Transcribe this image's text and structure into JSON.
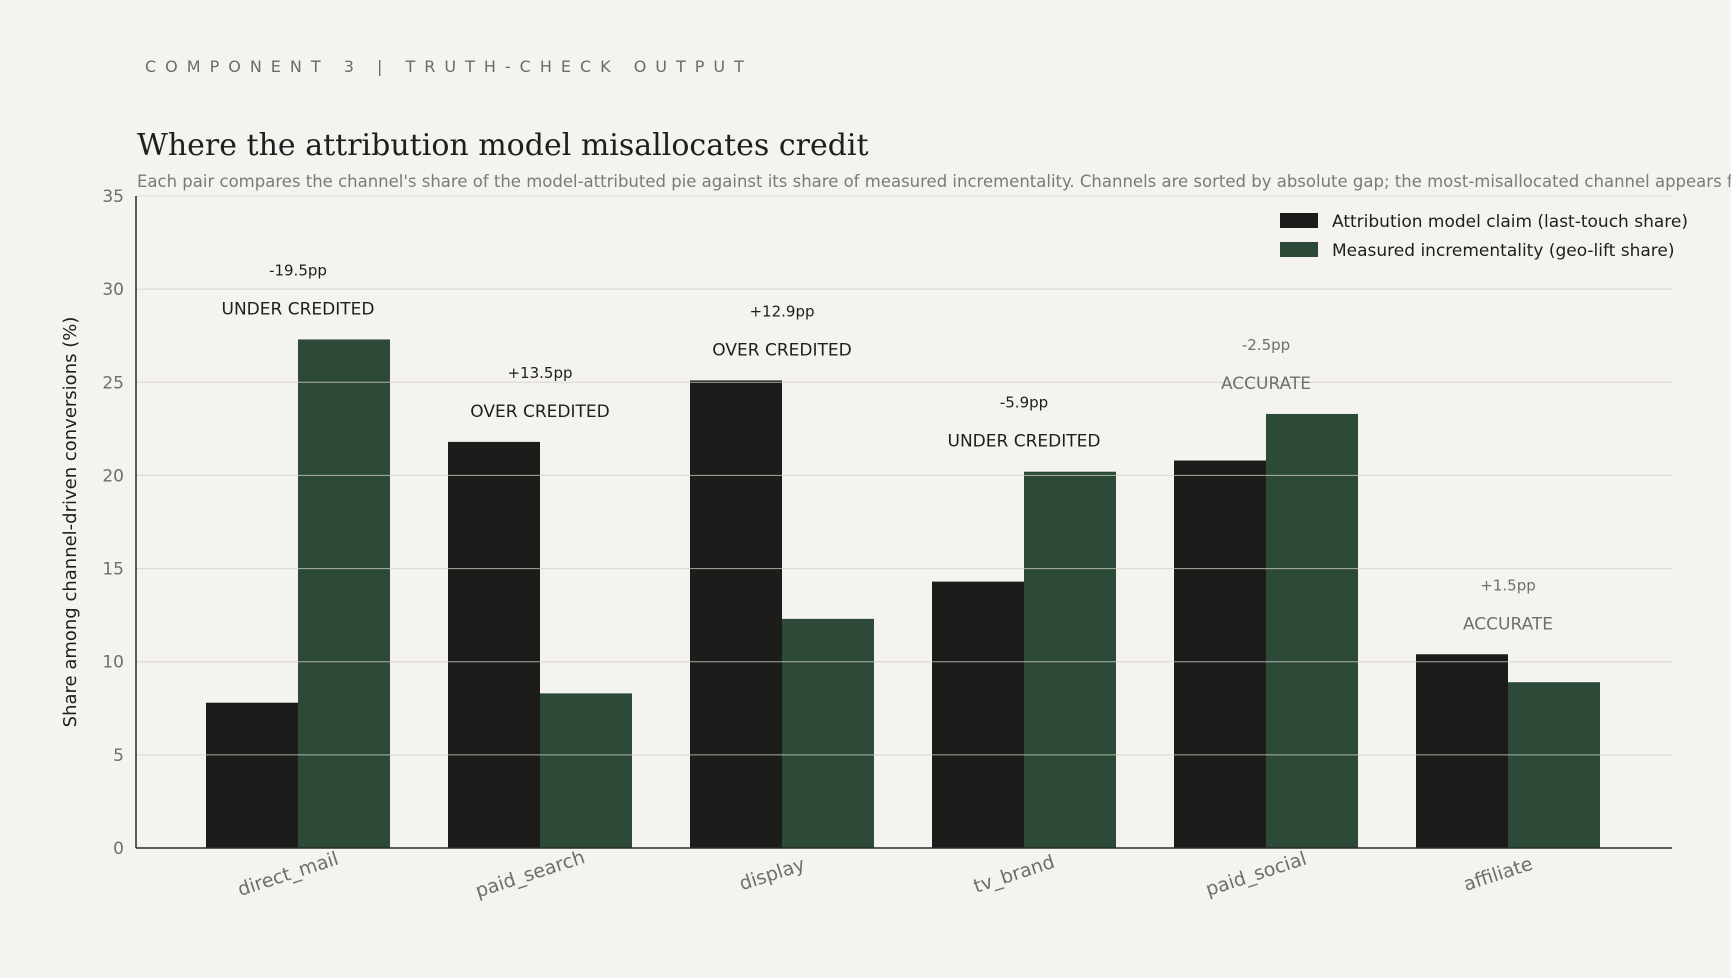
{
  "header": {
    "kicker": "COMPONENT 3 | TRUTH-CHECK OUTPUT",
    "title": "Where the attribution model misallocates credit",
    "subtitle": "Each pair compares the channel's share of the model-attributed pie against its share of measured incrementality. Channels are sorted by absolute gap; the most-misallocated channel appears first."
  },
  "chart_data": {
    "type": "bar",
    "title": "Where the attribution model misallocates credit",
    "xlabel": "",
    "ylabel": "Share among channel-driven conversions (%)",
    "ylim": [
      0,
      35
    ],
    "yticks": [
      0,
      5,
      10,
      15,
      20,
      25,
      30,
      35
    ],
    "grid": true,
    "legend_position": "top-right",
    "categories": [
      "direct_mail",
      "paid_search",
      "display",
      "tv_brand",
      "paid_social",
      "affiliate"
    ],
    "series": [
      {
        "name": "Attribution model claim (last-touch share)",
        "color": "#1c1c1a",
        "values": [
          7.8,
          21.8,
          25.1,
          14.3,
          20.8,
          10.4
        ]
      },
      {
        "name": "Measured incrementality (geo-lift share)",
        "color": "#2d4a38",
        "values": [
          27.3,
          8.3,
          12.3,
          20.2,
          23.3,
          8.9
        ]
      }
    ],
    "annotations": [
      {
        "gap": "-19.5pp",
        "verdict": "UNDER CREDITED",
        "emphasis": true
      },
      {
        "gap": "+13.5pp",
        "verdict": "OVER CREDITED",
        "emphasis": true
      },
      {
        "gap": "+12.9pp",
        "verdict": "OVER CREDITED",
        "emphasis": true
      },
      {
        "gap": "-5.9pp",
        "verdict": "UNDER CREDITED",
        "emphasis": true
      },
      {
        "gap": "-2.5pp",
        "verdict": "ACCURATE",
        "emphasis": false
      },
      {
        "gap": "+1.5pp",
        "verdict": "ACCURATE",
        "emphasis": false
      }
    ]
  },
  "colors": {
    "background": "#f5f3ef",
    "text_dark": "#1e1e1e",
    "text_muted": "#6e6e6e",
    "grid": "#e3e0da"
  }
}
